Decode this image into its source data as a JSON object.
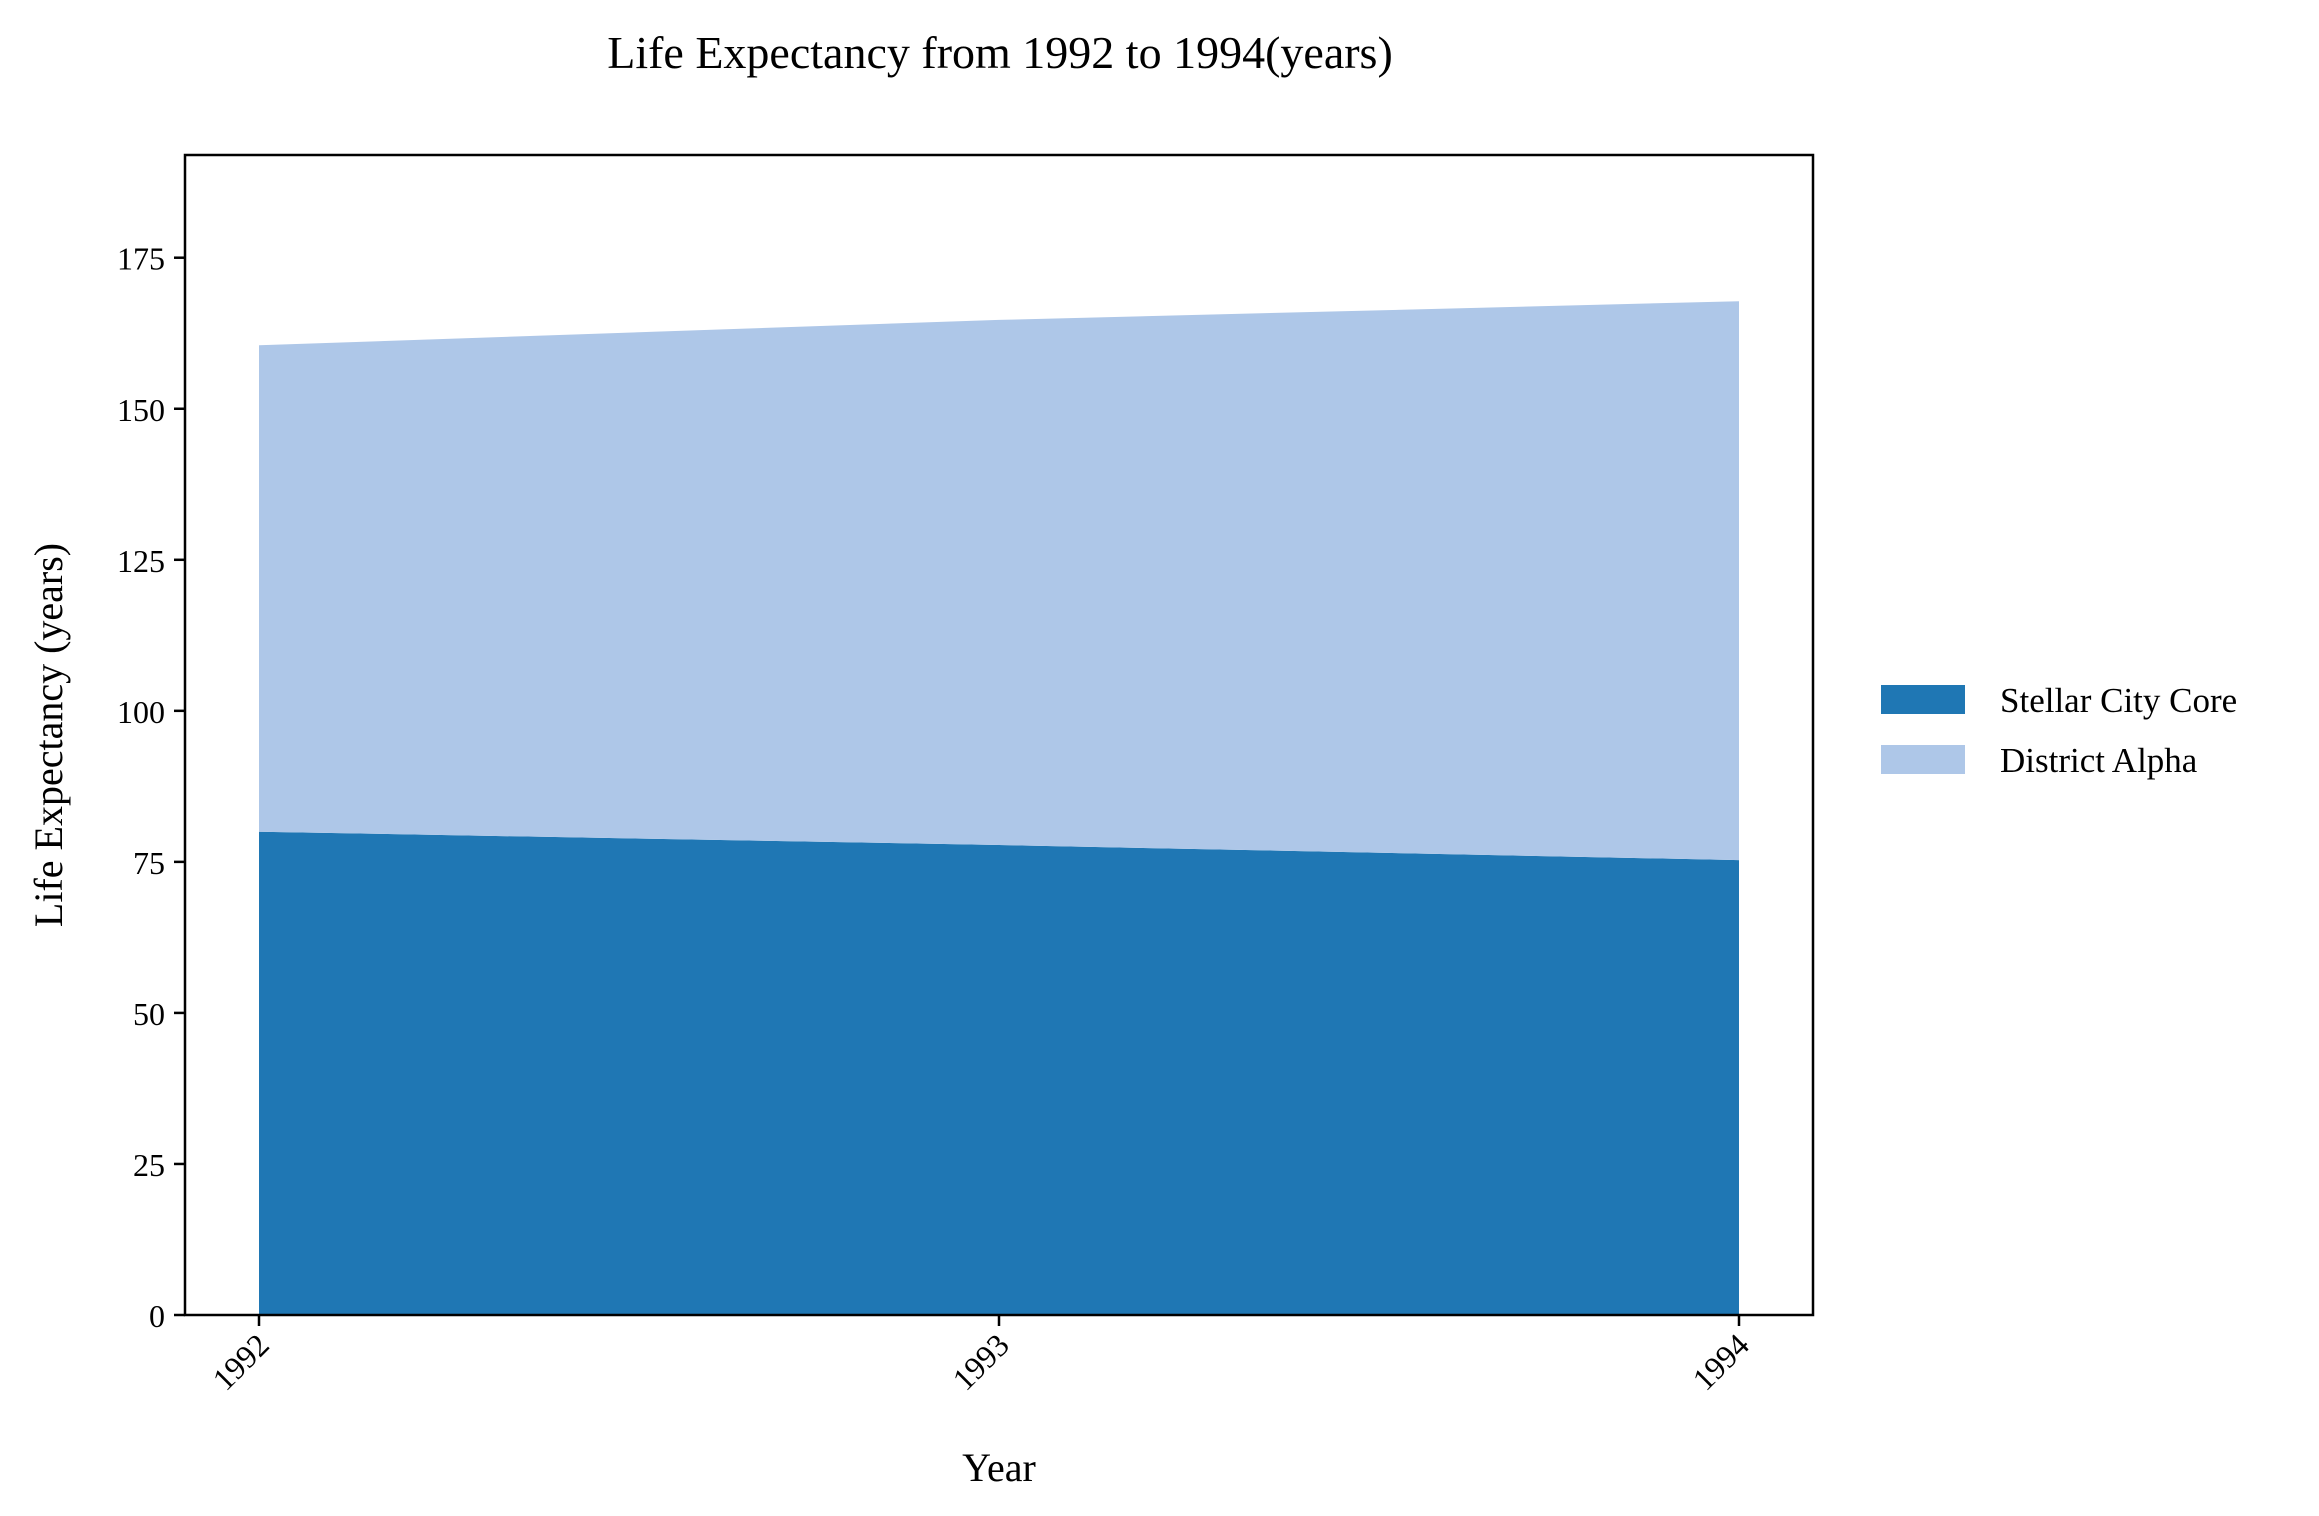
{
  "chart_data": {
    "type": "area",
    "stacked": true,
    "title": "Life Expectancy from 1992 to 1994(years)",
    "xlabel": "Year",
    "ylabel": "Life Expectancy (years)",
    "x": [
      "1992",
      "1993",
      "1994"
    ],
    "ylim": [
      0,
      192
    ],
    "yticks": [
      0,
      25,
      50,
      75,
      100,
      125,
      150,
      175
    ],
    "grid": false,
    "legend_position": "right",
    "series": [
      {
        "name": "Stellar City Core",
        "values": [
          80.0,
          77.8,
          75.3
        ],
        "color": "#1f77b4"
      },
      {
        "name": "District Alpha",
        "values": [
          80.5,
          86.9,
          92.5
        ],
        "color": "#aec7e8"
      }
    ]
  }
}
